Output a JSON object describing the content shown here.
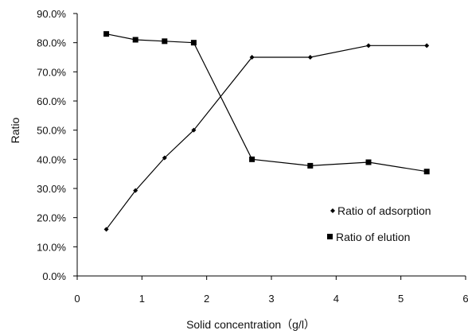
{
  "chart_data": {
    "type": "line",
    "title": "",
    "xlabel": "Solid concentration（g/l）",
    "ylabel": "Ratio",
    "xlim": [
      0,
      6
    ],
    "ylim": [
      0,
      90
    ],
    "x_ticks": [
      "0",
      "1",
      "2",
      "3",
      "4",
      "5",
      "6"
    ],
    "y_ticks": [
      "0.0%",
      "10.0%",
      "20.0%",
      "30.0%",
      "40.0%",
      "50.0%",
      "60.0%",
      "70.0%",
      "80.0%",
      "90.0%"
    ],
    "grid": false,
    "legend_position": "bottom-right",
    "series": [
      {
        "name": "Ratio of adsorption",
        "marker": "diamond",
        "color": "#000000",
        "x": [
          0.45,
          0.9,
          1.35,
          1.8,
          2.7,
          3.6,
          4.5,
          5.4
        ],
        "values": [
          16.0,
          29.3,
          40.5,
          50.0,
          75.0,
          75.0,
          79.0,
          79.0
        ]
      },
      {
        "name": "Ratio of elution",
        "marker": "square",
        "color": "#000000",
        "x": [
          0.45,
          0.9,
          1.35,
          1.8,
          2.7,
          3.6,
          4.5,
          5.4
        ],
        "values": [
          83.0,
          81.0,
          80.5,
          80.0,
          40.0,
          37.8,
          39.0,
          35.8
        ]
      }
    ]
  }
}
